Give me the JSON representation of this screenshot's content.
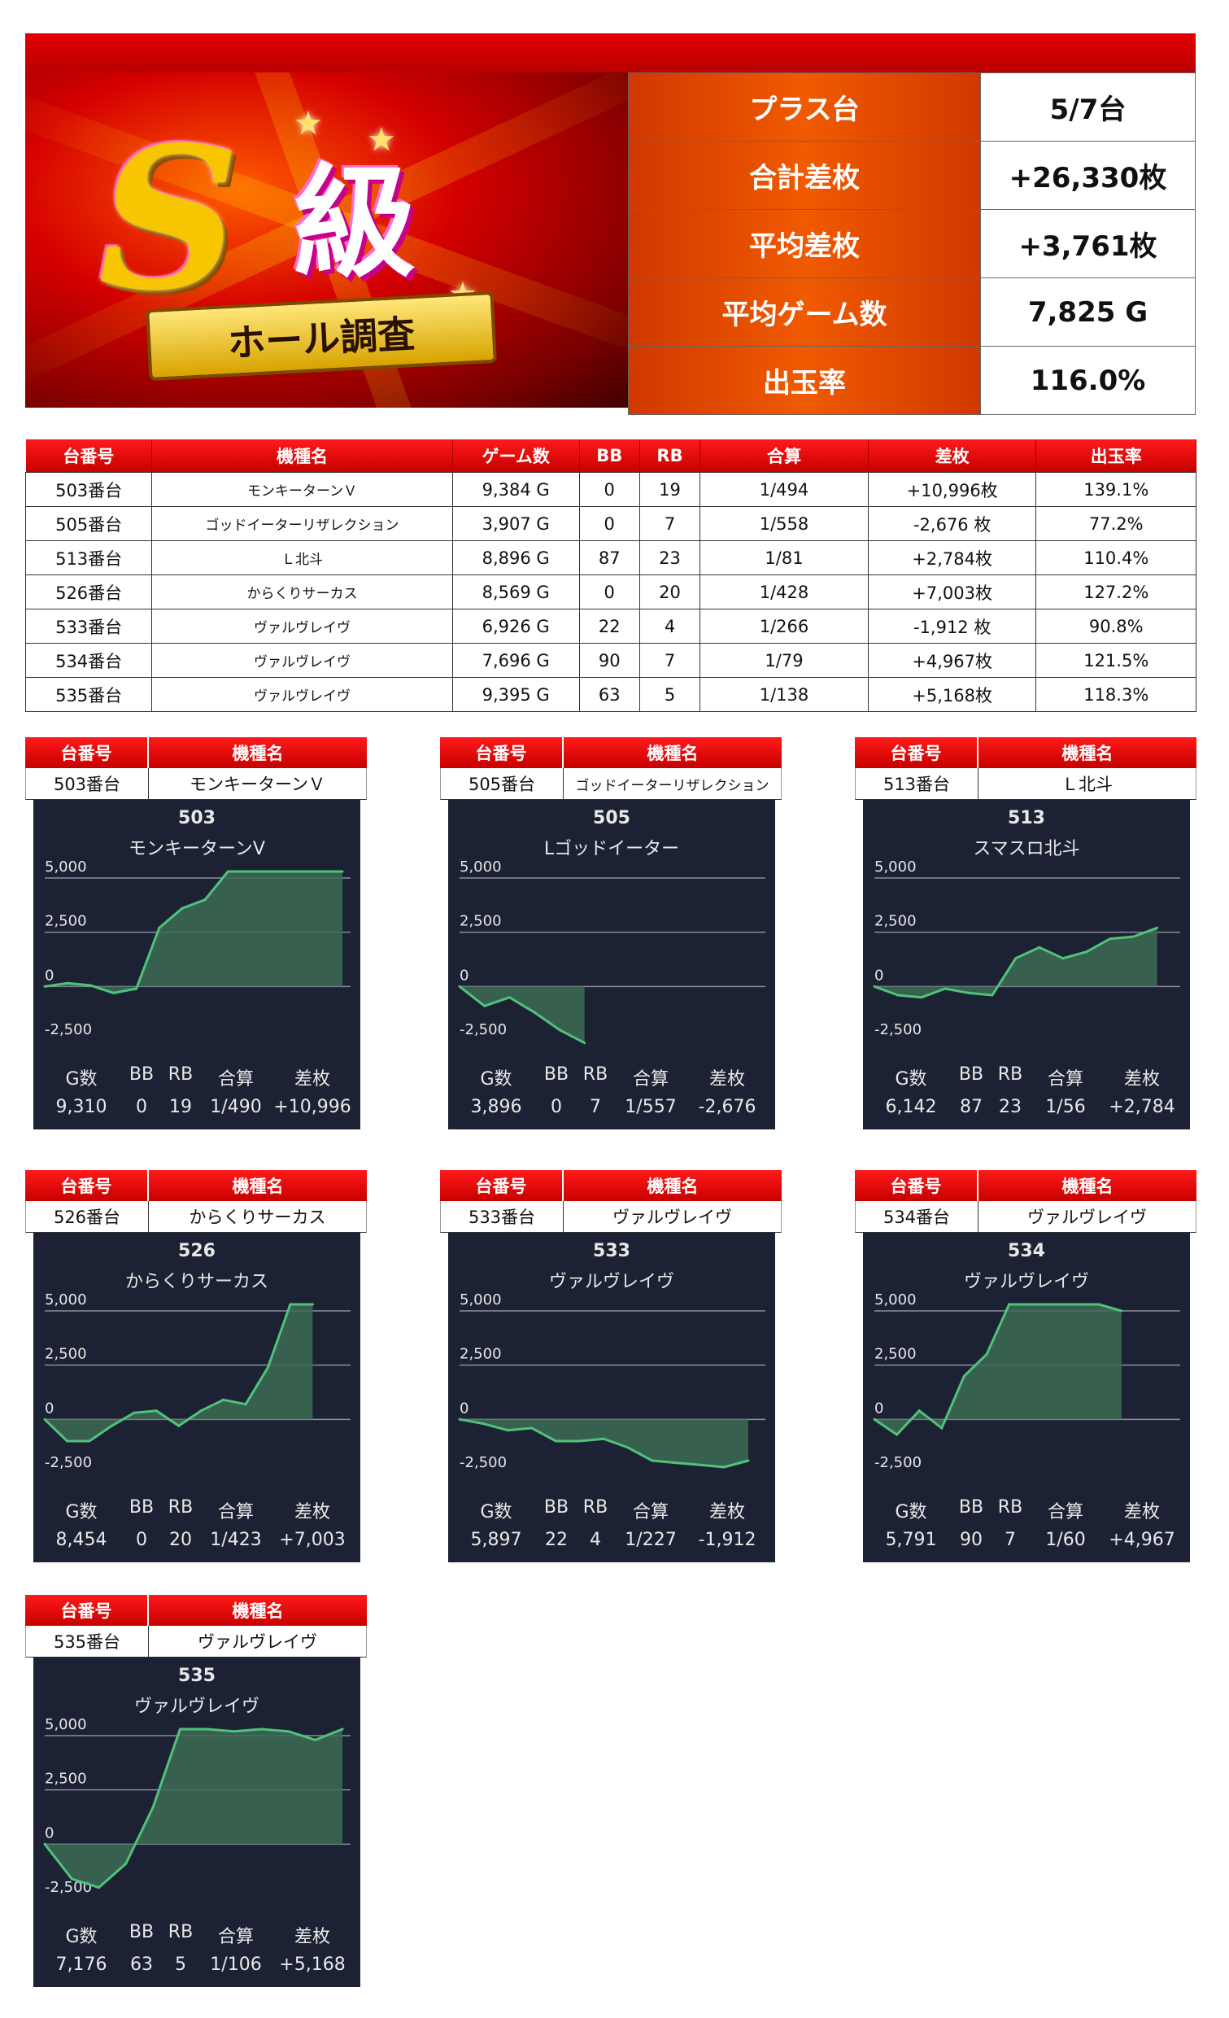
{
  "summary": [
    {
      "label": "プラス台",
      "value": "5/7台"
    },
    {
      "label": "合計差枚",
      "value": "+26,330枚"
    },
    {
      "label": "平均差枚",
      "value": "+3,761枚"
    },
    {
      "label": "平均ゲーム数",
      "value": "7,825 G"
    },
    {
      "label": "出玉率",
      "value": "116.0%"
    }
  ],
  "banner": {
    "big": "S",
    "kyu": "級",
    "plate": "ホール調査"
  },
  "table": {
    "headers": [
      "台番号",
      "機種名",
      "ゲーム数",
      "BB",
      "RB",
      "合算",
      "差枚",
      "出玉率"
    ],
    "rows": [
      {
        "no": "503番台",
        "name": "モンキーターンＶ",
        "games": "9,384 G",
        "bb": "0",
        "rb": "19",
        "gassan": "1/494",
        "diff": "+10,996枚",
        "rate": "139.1%",
        "sign": "pos"
      },
      {
        "no": "505番台",
        "name": "ゴッドイーターリザレクション",
        "games": "3,907 G",
        "bb": "0",
        "rb": "7",
        "gassan": "1/558",
        "diff": "-2,676 枚",
        "rate": "77.2%",
        "sign": "neg"
      },
      {
        "no": "513番台",
        "name": "Ｌ北斗",
        "games": "8,896 G",
        "bb": "87",
        "rb": "23",
        "gassan": "1/81",
        "diff": "+2,784枚",
        "rate": "110.4%",
        "sign": "pos"
      },
      {
        "no": "526番台",
        "name": "からくりサーカス",
        "games": "8,569 G",
        "bb": "0",
        "rb": "20",
        "gassan": "1/428",
        "diff": "+7,003枚",
        "rate": "127.2%",
        "sign": "pos"
      },
      {
        "no": "533番台",
        "name": "ヴァルヴレイヴ",
        "games": "6,926 G",
        "bb": "22",
        "rb": "4",
        "gassan": "1/266",
        "diff": "-1,912 枚",
        "rate": "90.8%",
        "sign": "neg"
      },
      {
        "no": "534番台",
        "name": "ヴァルヴレイヴ",
        "games": "7,696 G",
        "bb": "90",
        "rb": "7",
        "gassan": "1/79",
        "diff": "+4,967枚",
        "rate": "121.5%",
        "sign": "pos"
      },
      {
        "no": "535番台",
        "name": "ヴァルヴレイヴ",
        "games": "9,395 G",
        "bb": "63",
        "rb": "5",
        "gassan": "1/138",
        "diff": "+5,168枚",
        "rate": "118.3%",
        "sign": "pos"
      }
    ]
  },
  "card_headers": {
    "no": "台番号",
    "name": "機種名"
  },
  "stat_labels": [
    "G数",
    "BB",
    "RB",
    "合算",
    "差枚"
  ],
  "axis_labels": [
    "5,000",
    "2,500",
    "0",
    "-2,500"
  ],
  "cards": [
    {
      "no": "503番台",
      "name": "モンキーターンＶ",
      "pid": "503",
      "pname": "モンキーターンV",
      "stats": [
        "9,310",
        "0",
        "19",
        "1/490",
        "+10,996"
      ],
      "chart_data": {
        "type": "area",
        "ylim": [
          -2500,
          5000
        ],
        "y": [
          0,
          150,
          50,
          -300,
          -100,
          2700,
          3600,
          4000,
          5300,
          5300,
          5300,
          5300,
          5300,
          5300
        ]
      }
    },
    {
      "no": "505番台",
      "name": "ゴッドイーターリザレクション",
      "pid": "505",
      "pname": "Lゴッドイーター",
      "stats": [
        "3,896",
        "0",
        "7",
        "1/557",
        "-2,676"
      ],
      "chart_data": {
        "type": "area",
        "ylim": [
          -2500,
          5000
        ],
        "y": [
          0,
          -900,
          -500,
          -1200,
          -2000,
          -2600
        ]
      }
    },
    {
      "no": "513番台",
      "name": "Ｌ北斗",
      "pid": "513",
      "pname": "スマスロ北斗",
      "stats": [
        "6,142",
        "87",
        "23",
        "1/56",
        "+2,784"
      ],
      "chart_data": {
        "type": "area",
        "ylim": [
          -2500,
          5000
        ],
        "y": [
          0,
          -400,
          -500,
          -100,
          -300,
          -400,
          1300,
          1800,
          1300,
          1600,
          2200,
          2300,
          2700
        ]
      }
    },
    {
      "no": "526番台",
      "name": "からくりサーカス",
      "pid": "526",
      "pname": "からくりサーカス",
      "stats": [
        "8,454",
        "0",
        "20",
        "1/423",
        "+7,003"
      ],
      "chart_data": {
        "type": "area",
        "ylim": [
          -2500,
          5000
        ],
        "y": [
          0,
          -1000,
          -1000,
          -300,
          300,
          400,
          -300,
          400,
          900,
          700,
          2400,
          5300,
          5300
        ]
      }
    },
    {
      "no": "533番台",
      "name": "ヴァルヴレイヴ",
      "pid": "533",
      "pname": "ヴァルヴレイヴ",
      "stats": [
        "5,897",
        "22",
        "4",
        "1/227",
        "-1,912"
      ],
      "chart_data": {
        "type": "area",
        "ylim": [
          -2500,
          5000
        ],
        "y": [
          0,
          -200,
          -500,
          -400,
          -1000,
          -1000,
          -900,
          -1300,
          -1900,
          -2000,
          -2100,
          -2200,
          -1900
        ]
      }
    },
    {
      "no": "534番台",
      "name": "ヴァルヴレイヴ",
      "pid": "534",
      "pname": "ヴァルヴレイヴ",
      "stats": [
        "5,791",
        "90",
        "7",
        "1/60",
        "+4,967"
      ],
      "chart_data": {
        "type": "area",
        "ylim": [
          -2500,
          5000
        ],
        "y": [
          0,
          -700,
          400,
          -400,
          2000,
          3000,
          5300,
          5300,
          5300,
          5300,
          5300,
          5000
        ]
      }
    },
    {
      "no": "535番台",
      "name": "ヴァルヴレイヴ",
      "pid": "535",
      "pname": "ヴァルヴレイヴ",
      "stats": [
        "7,176",
        "63",
        "5",
        "1/106",
        "+5,168"
      ],
      "chart_data": {
        "type": "area",
        "ylim": [
          -2500,
          5000
        ],
        "y": [
          0,
          -1600,
          -2000,
          -900,
          1700,
          5300,
          5300,
          5200,
          5300,
          5200,
          4800,
          5300
        ]
      }
    }
  ],
  "colors": {
    "red": "#e00000",
    "orange": "#f05a00",
    "panel": "#1c2233",
    "line": "#4fc27a",
    "fill": "#3d6b55",
    "pos": "#0000cc",
    "neg": "#dd0000"
  }
}
